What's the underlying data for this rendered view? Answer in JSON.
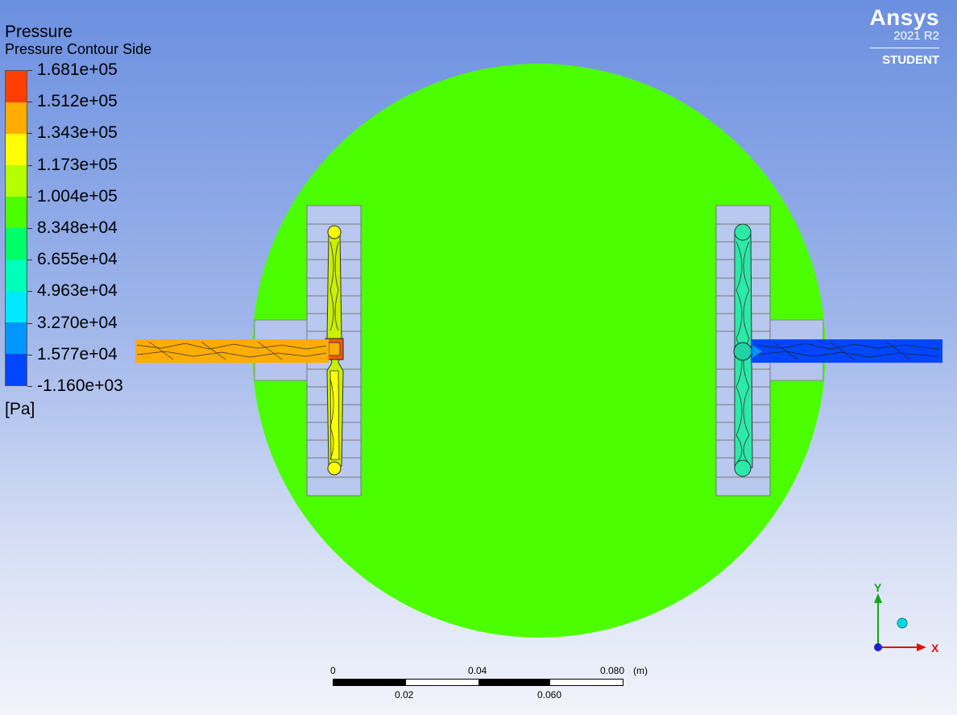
{
  "legend": {
    "title": "Pressure",
    "subtitle": "Pressure Contour Side",
    "unit": "[Pa]",
    "labels": [
      "1.681e+05",
      "1.512e+05",
      "1.343e+05",
      "1.173e+05",
      "1.004e+05",
      "8.348e+04",
      "6.655e+04",
      "4.963e+04",
      "3.270e+04",
      "1.577e+04",
      "-1.160e+03"
    ],
    "colors": [
      "#ff3f00",
      "#ffad00",
      "#ffff00",
      "#b4ff00",
      "#4cff00",
      "#00ff66",
      "#00ffb9",
      "#00e8ff",
      "#0096ff",
      "#0046ff"
    ]
  },
  "brand": {
    "name": "Ansys",
    "version": "2021 R2",
    "edition": "STUDENT"
  },
  "scale": {
    "top_labels": [
      "0",
      "0.04",
      "0.080"
    ],
    "unit": "(m)",
    "bottom_labels": [
      "0.02",
      "0.060"
    ]
  },
  "axes": {
    "y": "Y",
    "x": "X"
  },
  "field_colors": {
    "disk": "#4cff00",
    "inlet": "#ffad00",
    "outlet": "#0046ff",
    "left_chamber": "#c8f000",
    "right_chamber": "#2ee8a8"
  }
}
